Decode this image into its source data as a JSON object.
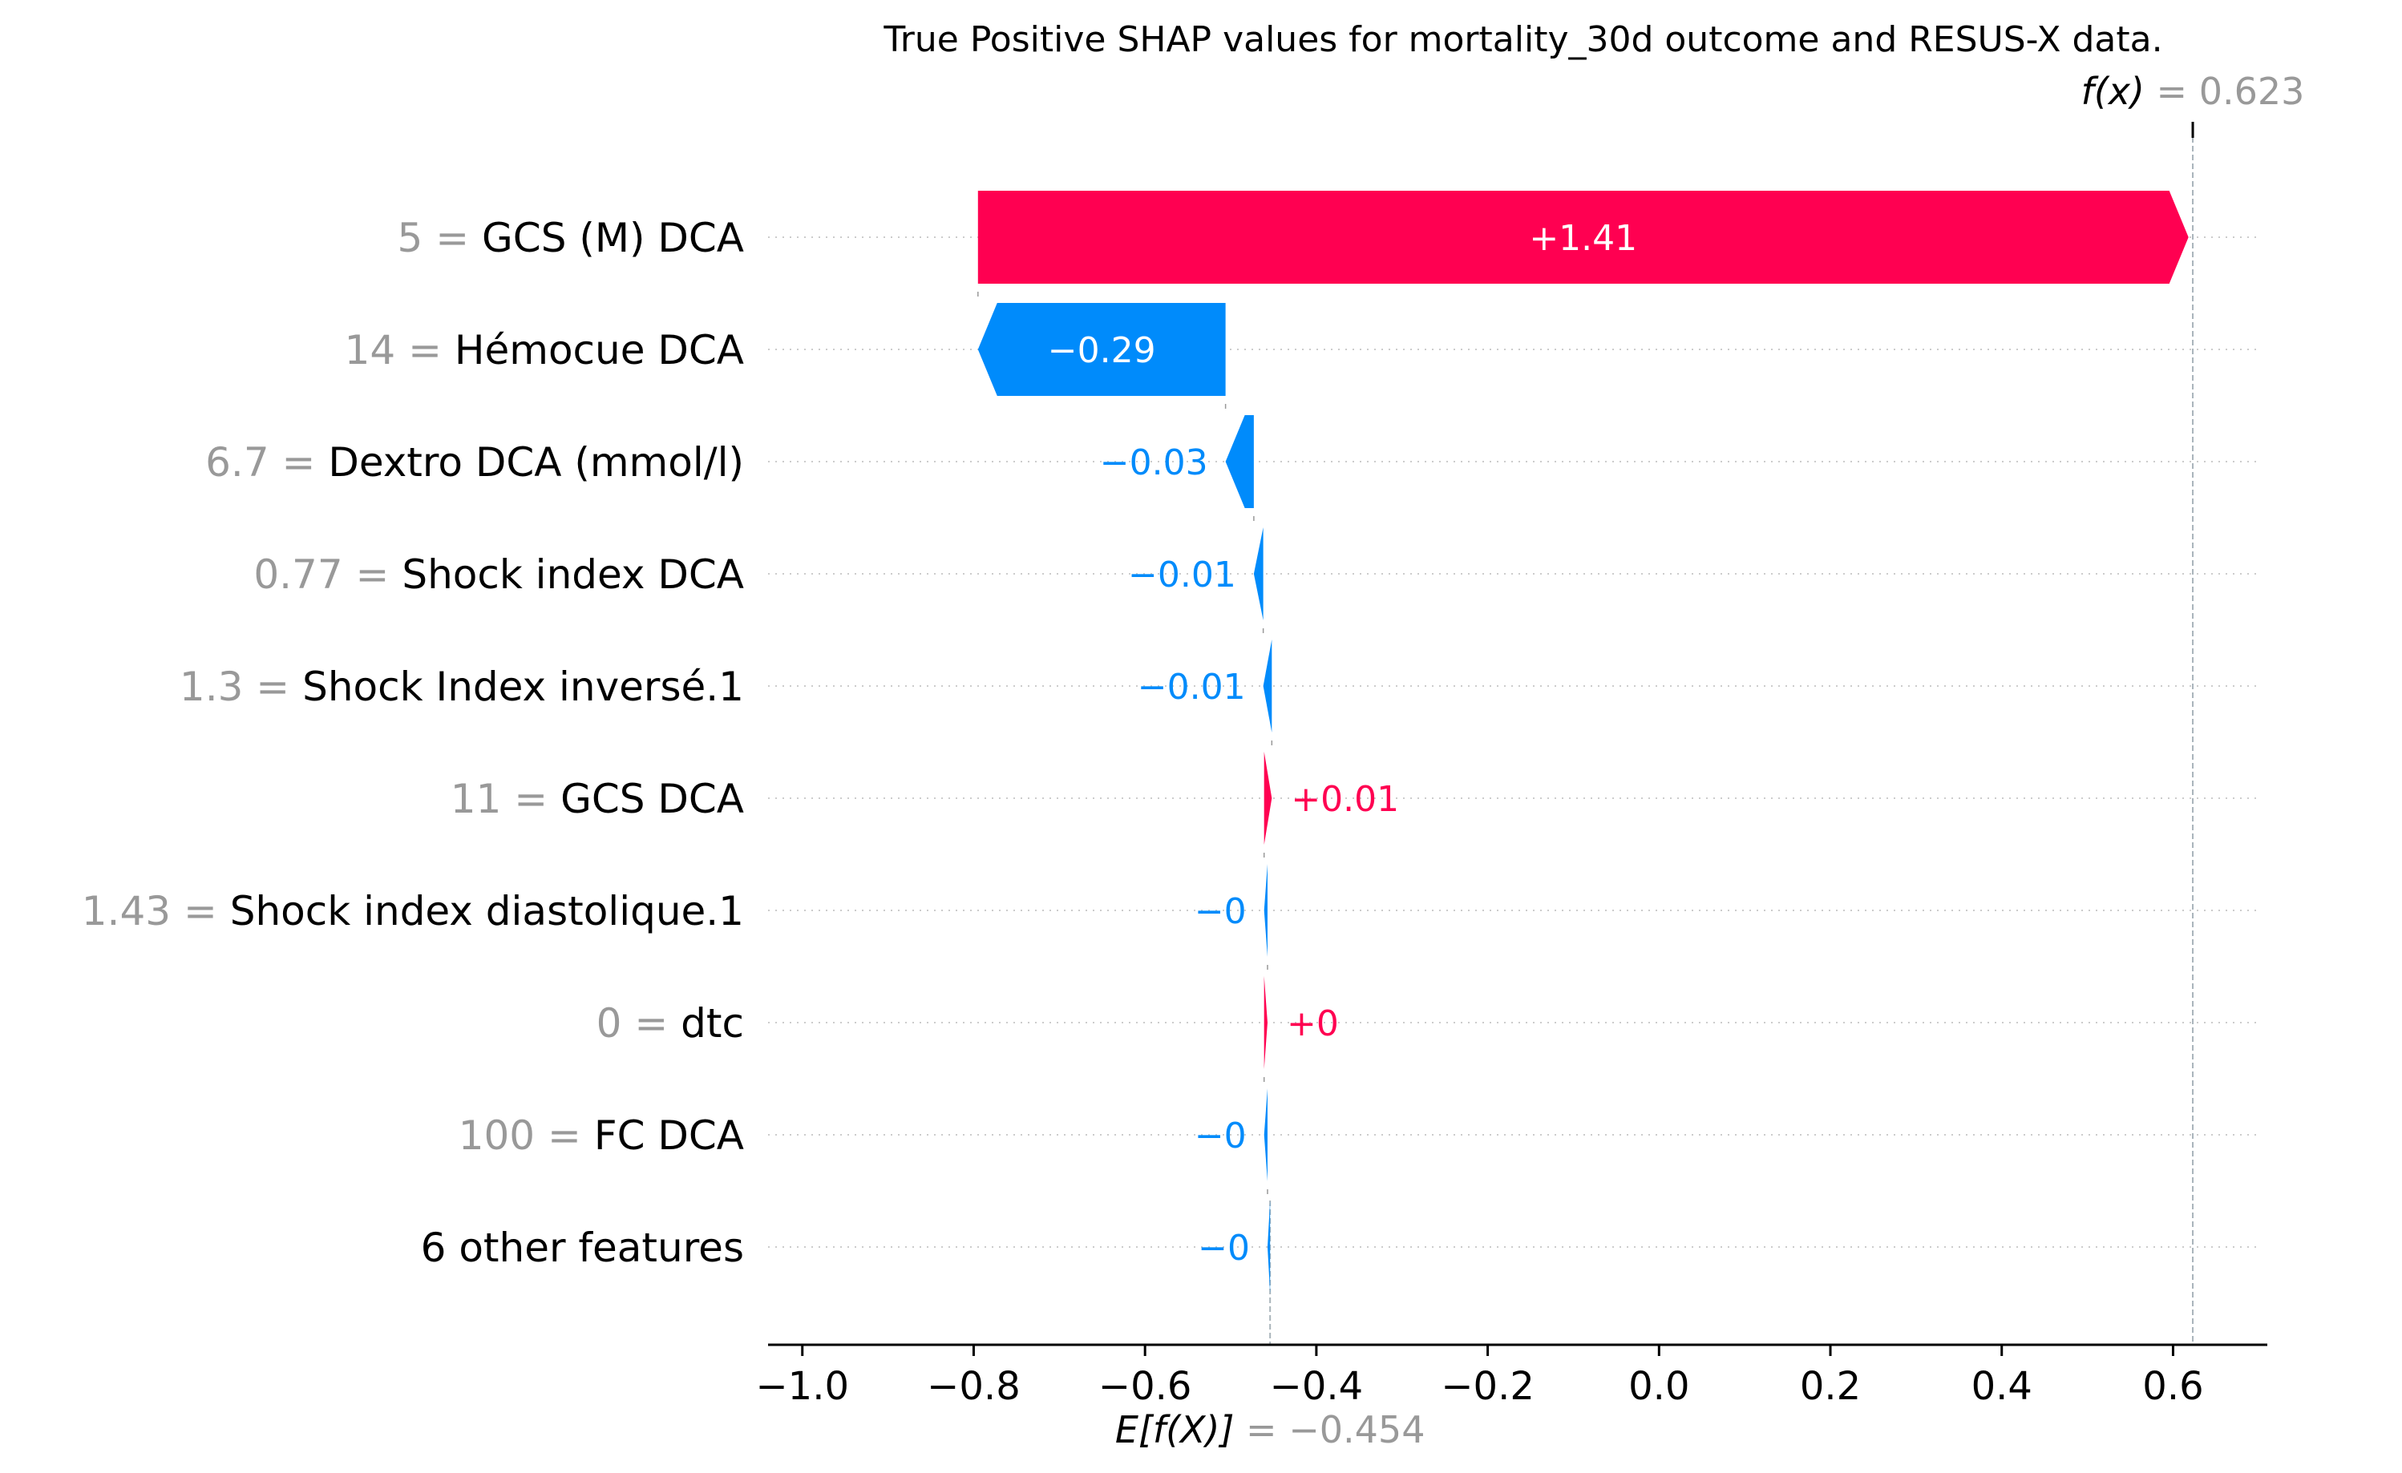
{
  "chart_data": {
    "type": "waterfall",
    "title": "True Positive SHAP values for mortality_30d outcome and RESUS-X data.",
    "fx_label": "f(x)",
    "fx_value": "0.623",
    "fx": 0.623,
    "base_label": "E[f(X)]",
    "base_value_text": "−0.454",
    "base_value": -0.454,
    "xlim": [
      -1.04,
      0.71
    ],
    "xticks": [
      -1.0,
      -0.8,
      -0.6,
      -0.4,
      -0.2,
      0.0,
      0.2,
      0.4,
      0.6
    ],
    "xtick_labels": [
      "−1.0",
      "−0.8",
      "−0.6",
      "−0.4",
      "−0.2",
      "0.0",
      "0.2",
      "0.4",
      "0.6"
    ],
    "colors": {
      "positive": "#ff0051",
      "negative": "#008bfb",
      "muted": "#999999"
    },
    "features": [
      {
        "value": "5",
        "name": "GCS (M) DCA",
        "shap": 1.413,
        "label": "+1.41"
      },
      {
        "value": "14",
        "name": "Hémocue DCA",
        "shap": -0.289,
        "label": "−0.29"
      },
      {
        "value": "6.7",
        "name": "Dextro DCA (mmol/l)",
        "shap": -0.033,
        "label": "−0.03"
      },
      {
        "value": "0.77",
        "name": "Shock index DCA",
        "shap": -0.011,
        "label": "−0.01"
      },
      {
        "value": "1.3",
        "name": "Shock Index inversé.1",
        "shap": -0.01,
        "label": "−0.01"
      },
      {
        "value": "11",
        "name": "GCS DCA",
        "shap": 0.009,
        "label": "+0.01"
      },
      {
        "value": "1.43",
        "name": "Shock index diastolique.1",
        "shap": -0.004,
        "label": "−0"
      },
      {
        "value": "0",
        "name": "dtc",
        "shap": 0.004,
        "label": "+0"
      },
      {
        "value": "100",
        "name": "FC  DCA",
        "shap": -0.004,
        "label": "−0"
      },
      {
        "value": "",
        "name": "6 other features",
        "shap": -0.003,
        "label": "−0"
      }
    ]
  }
}
